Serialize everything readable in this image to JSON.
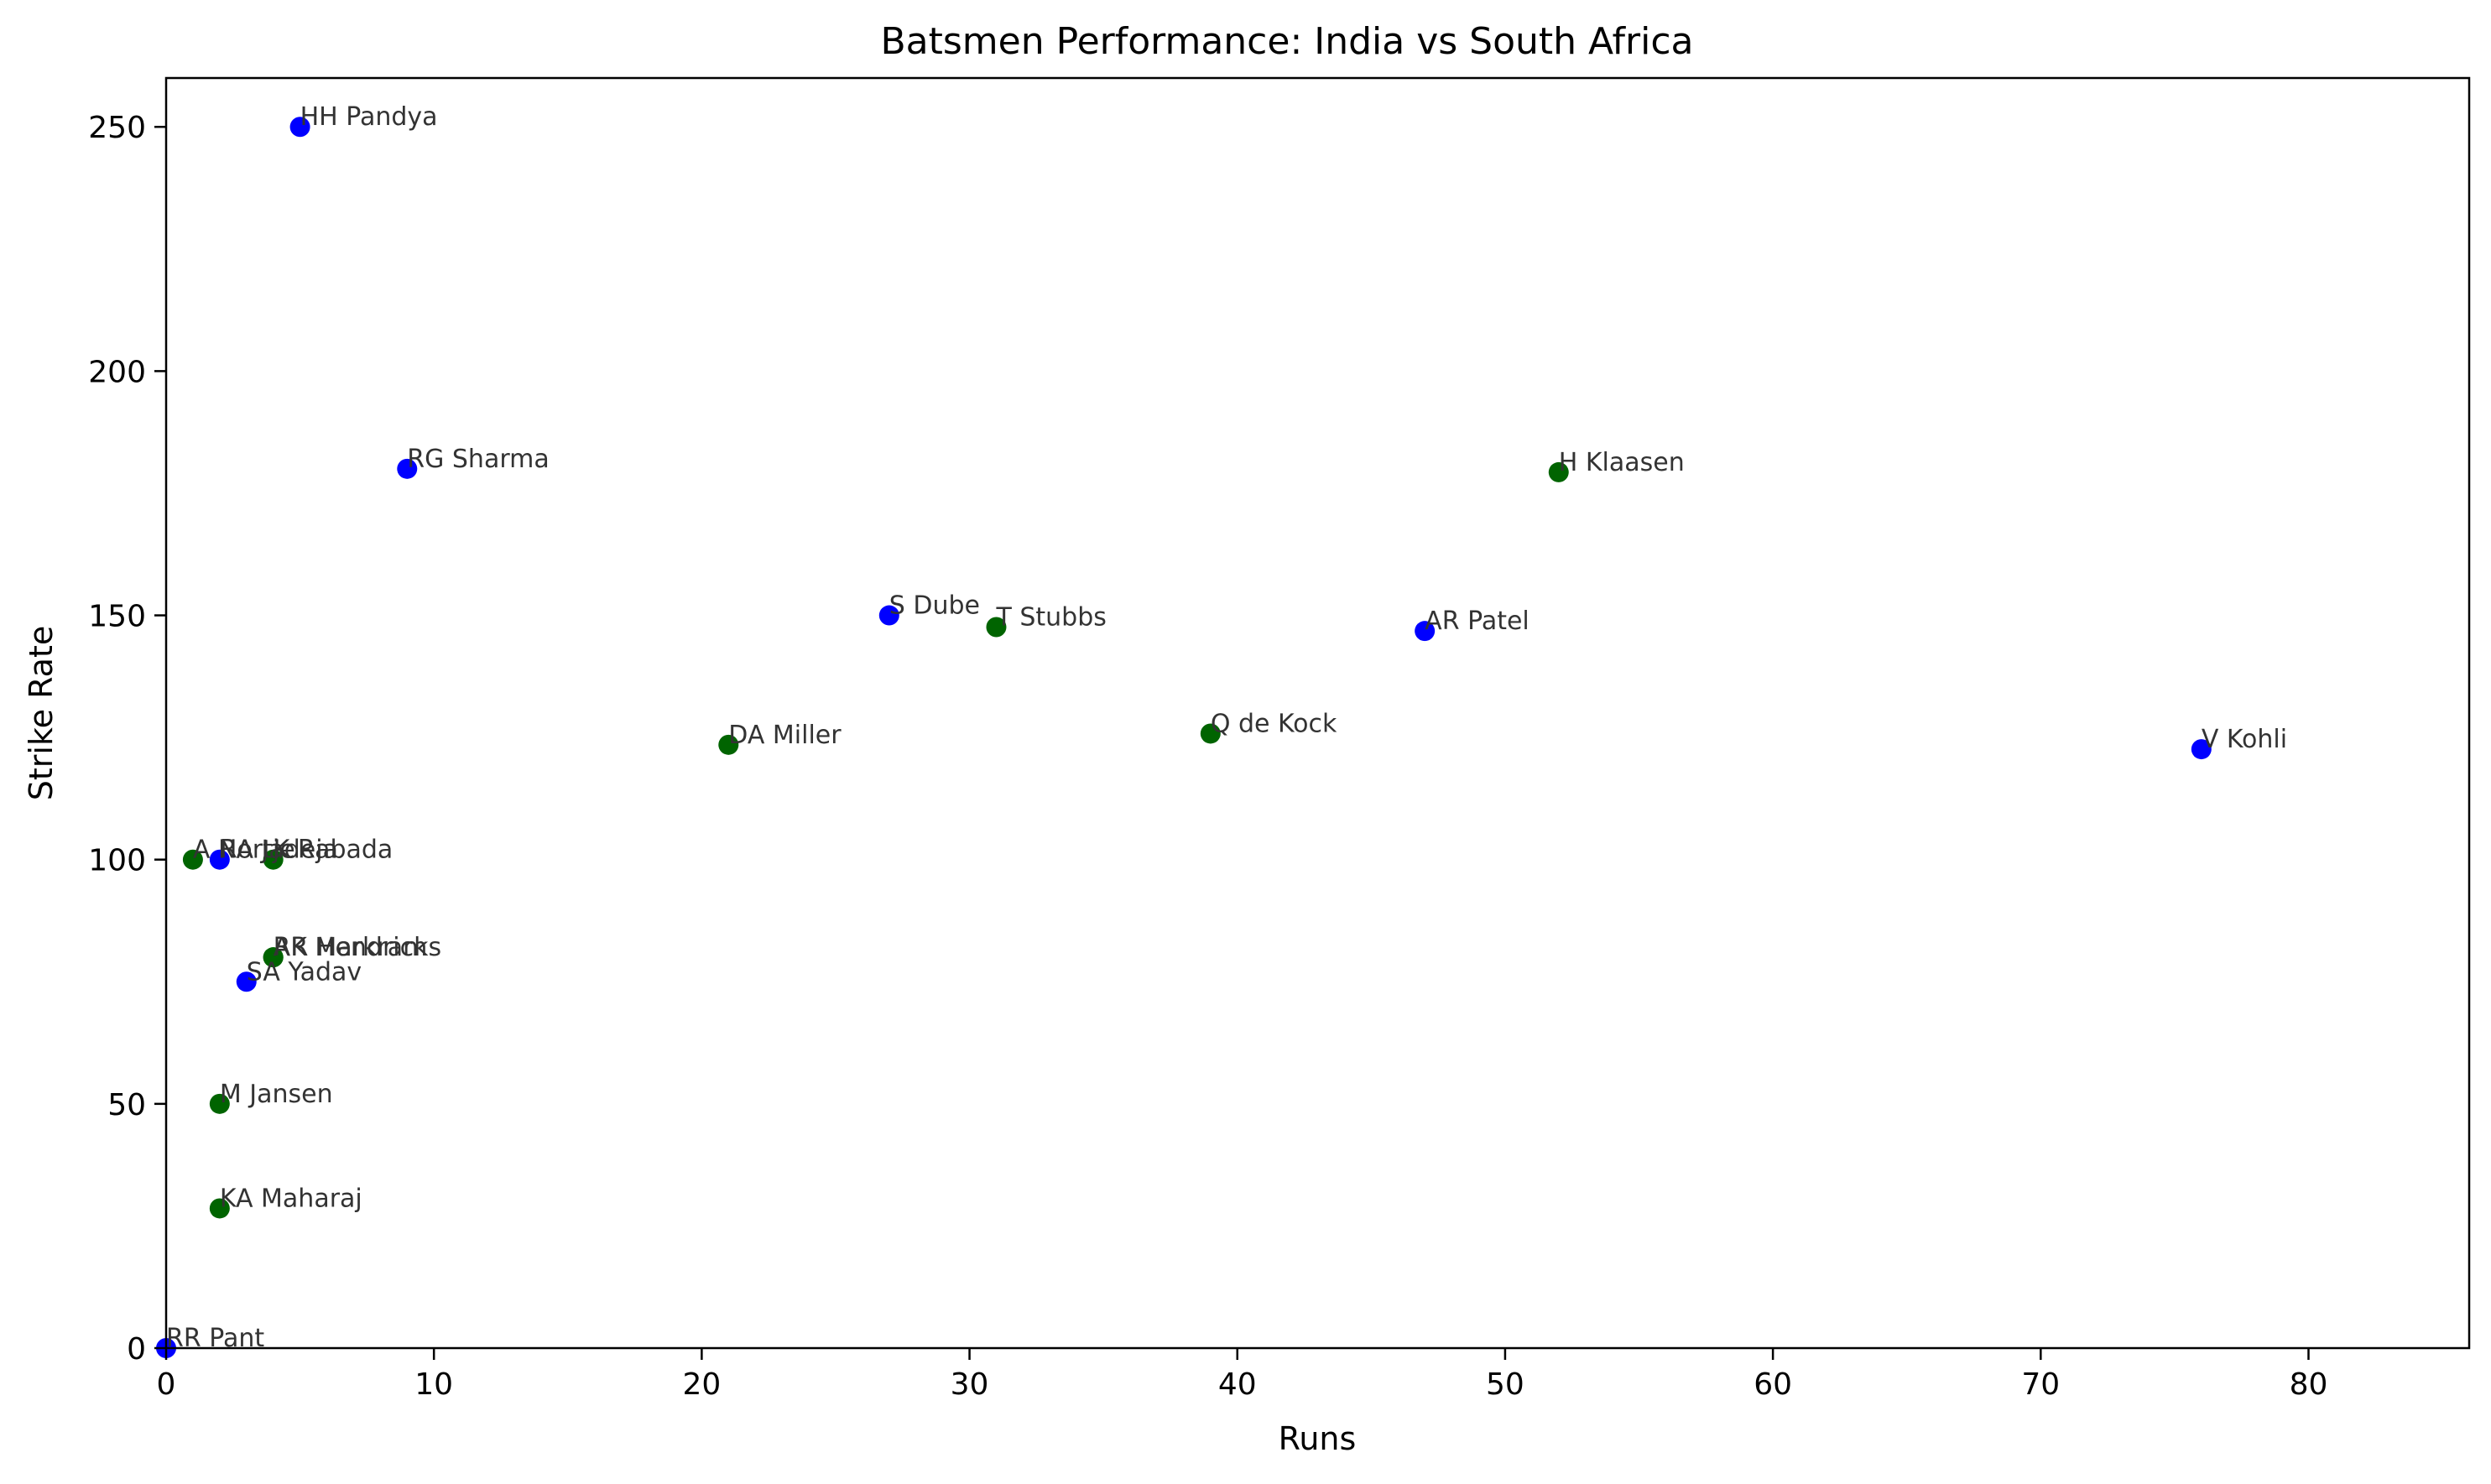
{
  "chart_data": {
    "type": "scatter",
    "title": "Batsmen Performance: India vs South Africa",
    "xlabel": "Runs",
    "ylabel": "Strike Rate",
    "xlim": [
      0,
      86
    ],
    "ylim": [
      0,
      260
    ],
    "xticks": [
      0,
      10,
      20,
      30,
      40,
      50,
      60,
      70,
      80
    ],
    "yticks": [
      0,
      50,
      100,
      150,
      200,
      250
    ],
    "grid": false,
    "colors": {
      "india": "#0000ff",
      "south_africa": "#006400"
    },
    "points": [
      {
        "name": "HH Pandya",
        "team": "india",
        "x": 5,
        "y": 250
      },
      {
        "name": "RG Sharma",
        "team": "india",
        "x": 9,
        "y": 180
      },
      {
        "name": "S Dube",
        "team": "india",
        "x": 27,
        "y": 150
      },
      {
        "name": "AR Patel",
        "team": "india",
        "x": 47,
        "y": 146.8
      },
      {
        "name": "V Kohli",
        "team": "india",
        "x": 76,
        "y": 122.6
      },
      {
        "name": "RA Jadeja",
        "team": "india",
        "x": 2,
        "y": 100
      },
      {
        "name": "SA Yadav",
        "team": "india",
        "x": 3,
        "y": 75
      },
      {
        "name": "RR Pant",
        "team": "india",
        "x": 0,
        "y": 0
      },
      {
        "name": "H Klaasen",
        "team": "south_africa",
        "x": 52,
        "y": 179.3
      },
      {
        "name": "T Stubbs",
        "team": "south_africa",
        "x": 31,
        "y": 147.6
      },
      {
        "name": "DA Miller",
        "team": "south_africa",
        "x": 21,
        "y": 123.5
      },
      {
        "name": "Q de Kock",
        "team": "south_africa",
        "x": 39,
        "y": 125.8
      },
      {
        "name": "A Nortje",
        "team": "south_africa",
        "x": 1,
        "y": 100
      },
      {
        "name": "K Rabada",
        "team": "south_africa",
        "x": 4,
        "y": 100
      },
      {
        "name": "RR Hendricks",
        "team": "south_africa",
        "x": 4,
        "y": 80
      },
      {
        "name": "AK Markram",
        "team": "south_africa",
        "x": 4,
        "y": 80
      },
      {
        "name": "M Jansen",
        "team": "south_africa",
        "x": 2,
        "y": 50
      },
      {
        "name": "KA Maharaj",
        "team": "south_africa",
        "x": 2,
        "y": 28.6
      }
    ]
  }
}
